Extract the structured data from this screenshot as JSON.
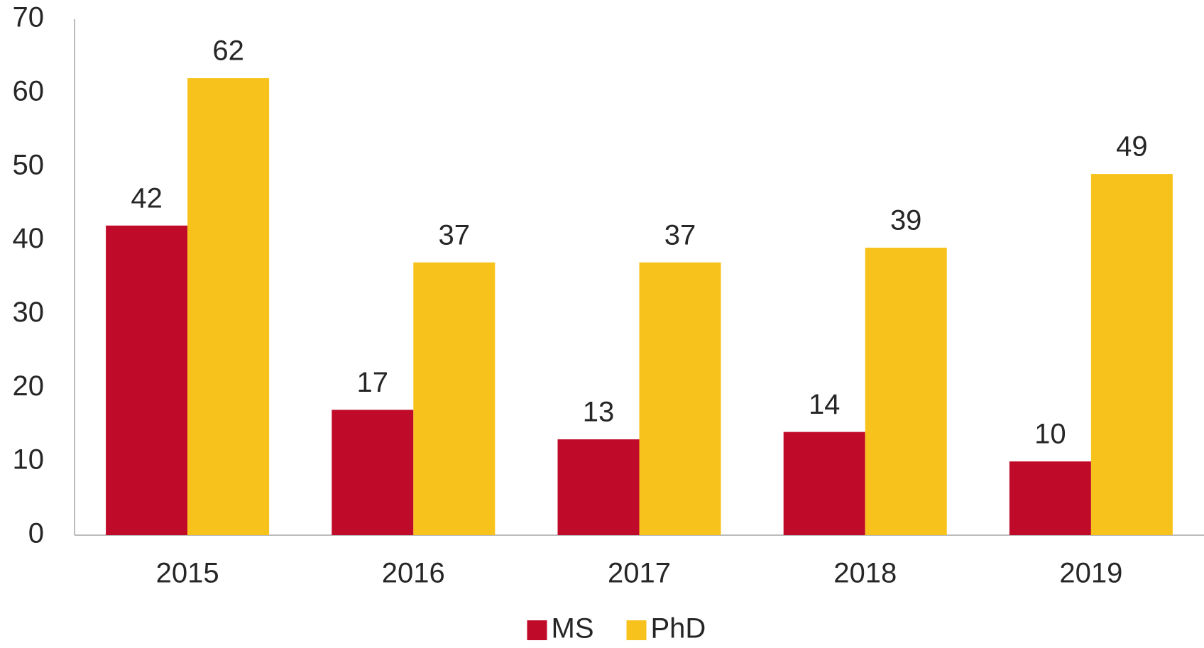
{
  "chart_data": {
    "type": "bar",
    "categories": [
      "2015",
      "2016",
      "2017",
      "2018",
      "2019"
    ],
    "series": [
      {
        "name": "MS",
        "color": "#c00a2a",
        "values": [
          42,
          17,
          13,
          14,
          10
        ]
      },
      {
        "name": "PhD",
        "color": "#f8c21c",
        "values": [
          62,
          37,
          37,
          39,
          49
        ]
      }
    ],
    "ylim": [
      0,
      70
    ],
    "yticks": [
      0,
      10,
      20,
      30,
      40,
      50,
      60,
      70
    ],
    "grid": false,
    "legend": "bottom",
    "data_labels": true
  }
}
